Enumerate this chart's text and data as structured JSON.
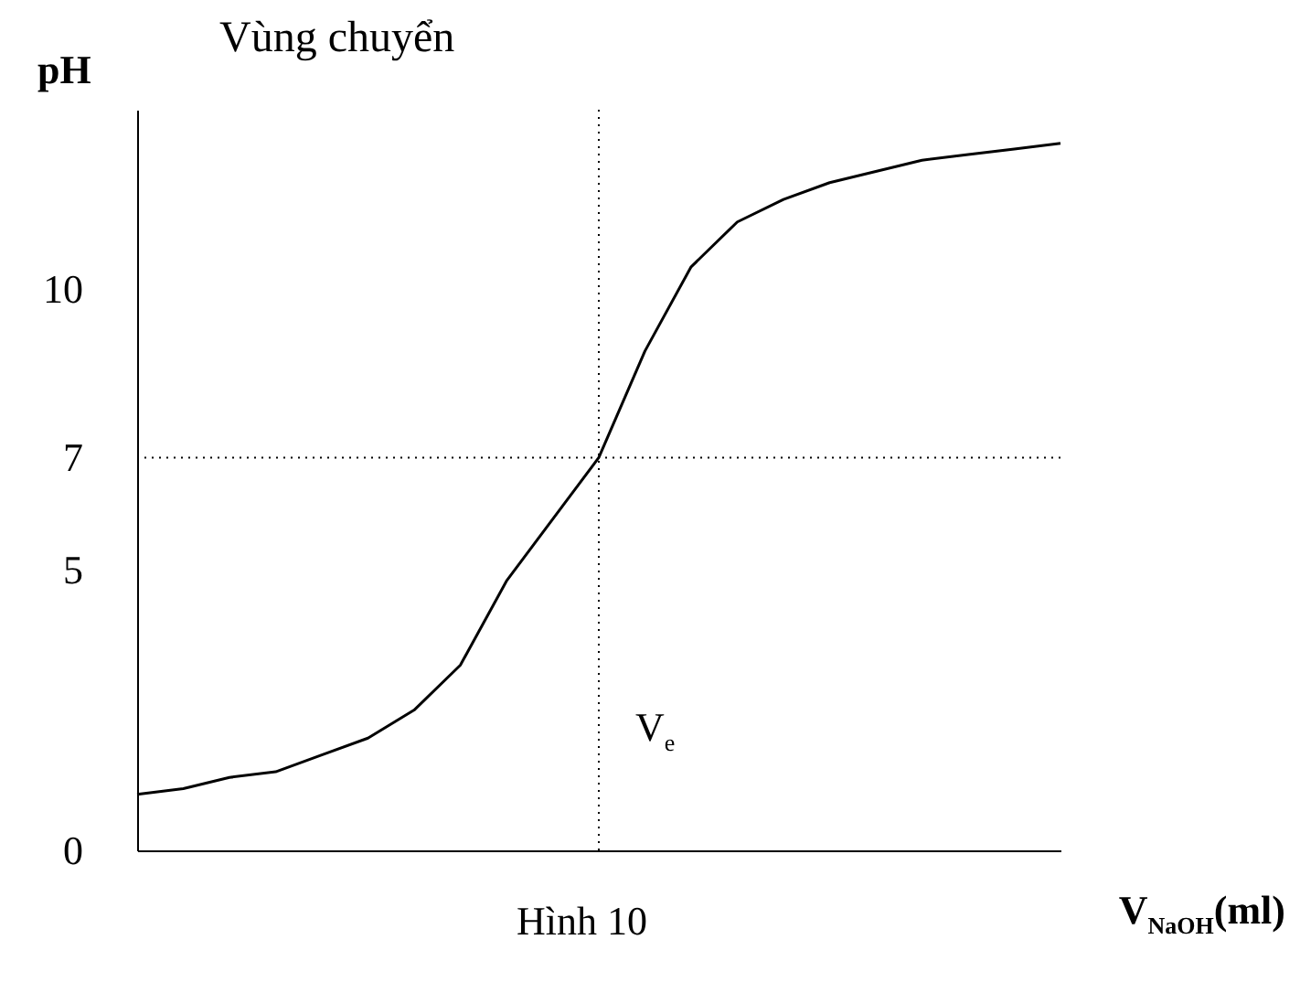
{
  "chart_data": {
    "type": "line",
    "title": "Vùng chuyển",
    "ylabel": "pH",
    "xlabel": "V$_{NaOH}$(ml)",
    "annotations": [
      "Hình 10",
      "V$_{e}$"
    ],
    "categories": [
      null,
      null,
      null,
      null,
      null,
      null,
      null,
      null,
      null,
      null,
      null,
      null,
      null,
      null,
      null,
      null,
      null,
      null,
      null,
      null,
      null
    ],
    "series": [
      {
        "color": "#000000",
        "values": [
          1.0,
          1.1,
          1.3,
          1.4,
          1.7,
          2.0,
          2.5,
          3.3,
          4.8,
          5.9,
          7.0,
          8.9,
          10.4,
          11.2,
          11.6,
          11.9,
          12.1,
          12.3,
          12.4,
          12.5,
          12.6
        ]
      }
    ],
    "ylim": [
      0,
      13.2
    ],
    "yticks": [
      0,
      5,
      7,
      10
    ],
    "tick_labels": "y",
    "grid": false,
    "ref_lines": [
      {
        "axis": "y",
        "value": 7,
        "line_style": "dotted",
        "color": "#000000"
      }
    ]
  }
}
